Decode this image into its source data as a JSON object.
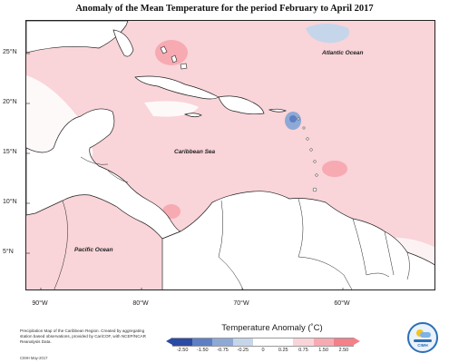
{
  "title": "Anomaly of the Mean Temperature for the period February to April 2017",
  "map": {
    "lat_labels": [
      "25°N",
      "20°N",
      "15°N",
      "10°N",
      "5°N"
    ],
    "lon_labels": [
      "90°W",
      "80°W",
      "70°W",
      "60°W"
    ],
    "region_labels": {
      "atlantic": "Atlantic Ocean",
      "caribbean": "Caribbean Sea",
      "pacific": "Pacific Ocean"
    }
  },
  "footnote": "Precipitation Map of the Caribbean Region. Created by aggregating station based observations, provided by CariCOF, with NCEP/NCAR Reanalysis Data.",
  "credit": "CIMH May-2017",
  "legend": {
    "title": "Temperature Anomaly (˚C)",
    "ticks": [
      "-2.50",
      "-1.50",
      "-0.75",
      "-0.25",
      "0",
      "0.25",
      "0.75",
      "1.50",
      "2.50"
    ],
    "colors": [
      "#2b4aa3",
      "#5e7fc4",
      "#8ea9d6",
      "#c5d6ea",
      "#ffffff",
      "#ffffff",
      "#f9d4d8",
      "#f7aab2",
      "#f4808a"
    ]
  },
  "logo_text": "CIMH"
}
